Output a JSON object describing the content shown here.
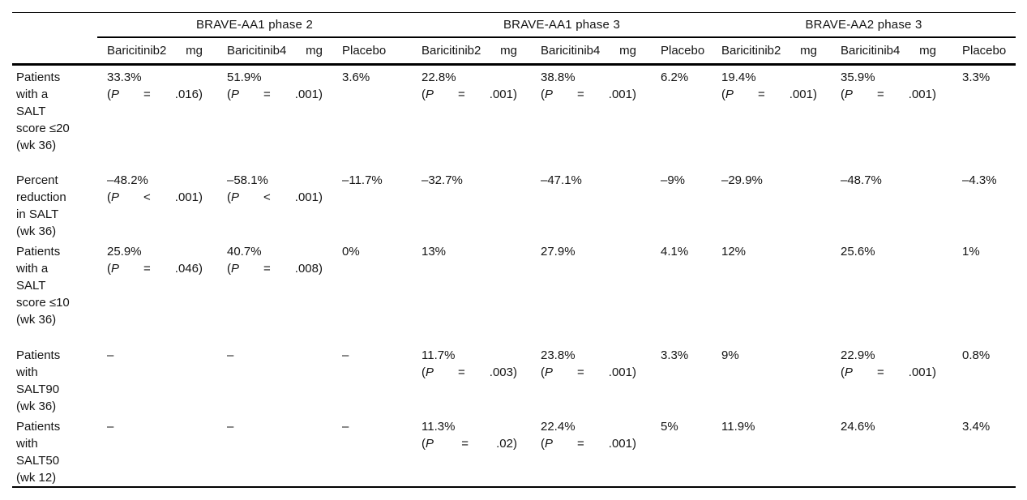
{
  "table": {
    "groups": [
      {
        "label": "BRAVE-AA1 phase 2"
      },
      {
        "label": "BRAVE-AA1 phase 3"
      },
      {
        "label": "BRAVE-AA2 phase 3"
      }
    ],
    "columns": [
      {
        "group": 0,
        "tokens": [
          "Baricitinib2",
          "mg"
        ]
      },
      {
        "group": 0,
        "tokens": [
          "Baricitinib4",
          "mg"
        ]
      },
      {
        "group": 0,
        "tokens": [
          "Placebo"
        ]
      },
      {
        "group": 1,
        "tokens": [
          "Baricitinib2",
          "mg"
        ]
      },
      {
        "group": 1,
        "tokens": [
          "Baricitinib4",
          "mg"
        ]
      },
      {
        "group": 1,
        "tokens": [
          "Placebo"
        ]
      },
      {
        "group": 2,
        "tokens": [
          "Baricitinib2",
          "mg"
        ]
      },
      {
        "group": 2,
        "tokens": [
          "Baricitinib4",
          "mg"
        ]
      },
      {
        "group": 2,
        "tokens": [
          "Placebo"
        ]
      }
    ],
    "rows": [
      {
        "label": "Patients with a SALT score ≤20 (wk 36)",
        "cells": [
          {
            "value": "33.3%",
            "p": [
              "(P",
              "=",
              ".016)"
            ]
          },
          {
            "value": "51.9%",
            "p": [
              "(P",
              "=",
              ".001)"
            ]
          },
          {
            "value": "3.6%"
          },
          {
            "value": "22.8%",
            "p": [
              "(P",
              "=",
              ".001)"
            ]
          },
          {
            "value": "38.8%",
            "p": [
              "(P",
              "=",
              ".001)"
            ]
          },
          {
            "value": "6.2%"
          },
          {
            "value": "19.4%",
            "p": [
              "(P",
              "=",
              ".001)"
            ]
          },
          {
            "value": "35.9%",
            "p": [
              "(P",
              "=",
              ".001)"
            ]
          },
          {
            "value": "3.3%"
          }
        ]
      },
      {
        "label": "Percent reduction in SALT (wk 36)",
        "cells": [
          {
            "value": "–48.2%",
            "p": [
              "(P",
              "<",
              ".001)"
            ]
          },
          {
            "value": "–58.1%",
            "p": [
              "(P",
              "<",
              ".001)"
            ]
          },
          {
            "value": "–11.7%"
          },
          {
            "value": "–32.7%"
          },
          {
            "value": "–47.1%"
          },
          {
            "value": "–9%"
          },
          {
            "value": "–29.9%"
          },
          {
            "value": "–48.7%"
          },
          {
            "value": "–4.3%"
          }
        ]
      },
      {
        "label": "Patients with a SALT score ≤10 (wk 36)",
        "cells": [
          {
            "value": "25.9%",
            "p": [
              "(P",
              "=",
              ".046)"
            ]
          },
          {
            "value": "40.7%",
            "p": [
              "(P",
              "=",
              ".008)"
            ]
          },
          {
            "value": "0%"
          },
          {
            "value": "13%"
          },
          {
            "value": "27.9%"
          },
          {
            "value": "4.1%"
          },
          {
            "value": "12%"
          },
          {
            "value": "25.6%"
          },
          {
            "value": "1%"
          }
        ]
      },
      {
        "label": "Patients with SALT90 (wk 36)",
        "cells": [
          {
            "value": "–"
          },
          {
            "value": "–"
          },
          {
            "value": "–"
          },
          {
            "value": "11.7%",
            "p": [
              "(P",
              "=",
              ".003)"
            ]
          },
          {
            "value": "23.8%",
            "p": [
              "(P",
              "=",
              ".001)"
            ]
          },
          {
            "value": "3.3%"
          },
          {
            "value": "9%"
          },
          {
            "value": "22.9%",
            "p": [
              "(P",
              "=",
              ".001)"
            ]
          },
          {
            "value": "0.8%"
          }
        ]
      },
      {
        "label": "Patients with SALT50 (wk 12)",
        "cells": [
          {
            "value": "–"
          },
          {
            "value": "–"
          },
          {
            "value": "–"
          },
          {
            "value": "11.3%",
            "p": [
              "(P",
              "=",
              ".02)"
            ]
          },
          {
            "value": "22.4%",
            "p": [
              "(P",
              "=",
              ".001)"
            ]
          },
          {
            "value": "5%"
          },
          {
            "value": "11.9%"
          },
          {
            "value": "24.6%"
          },
          {
            "value": "3.4%"
          }
        ]
      }
    ],
    "colors": {
      "rule": "#000000",
      "text": "#141414",
      "background": "#ffffff"
    }
  }
}
